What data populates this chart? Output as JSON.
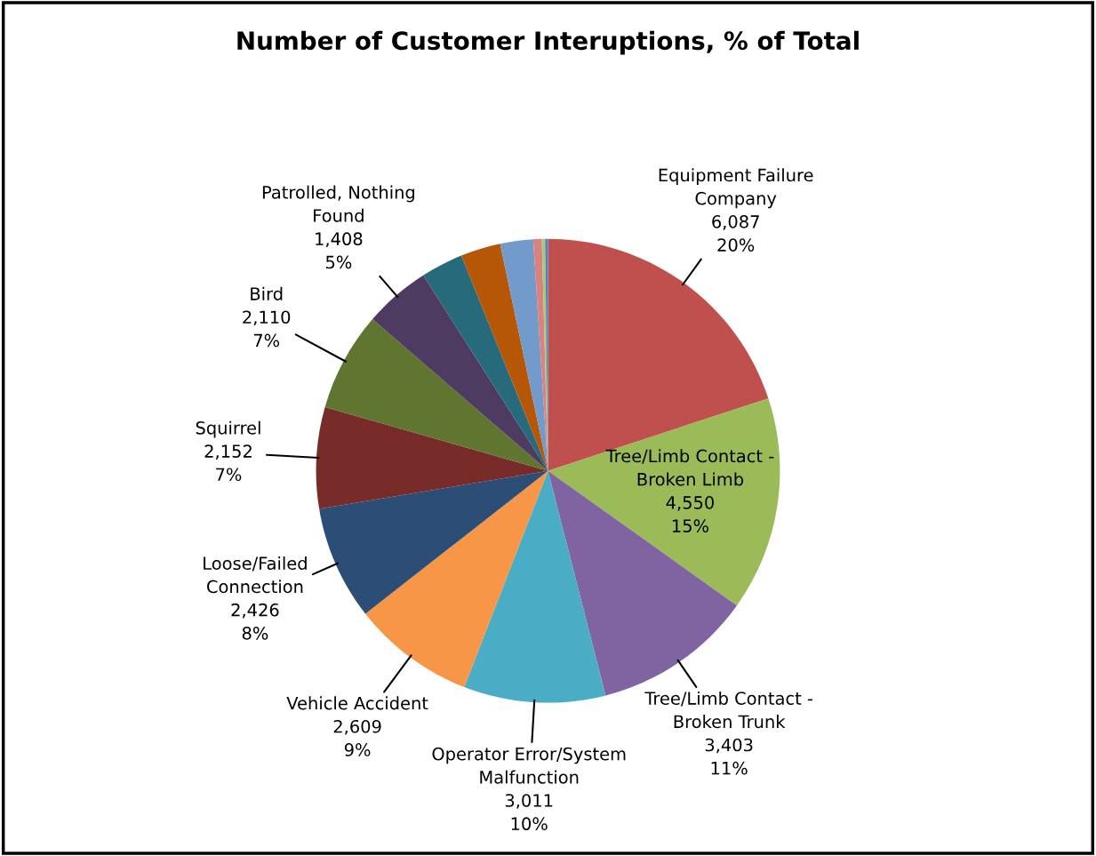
{
  "chart_data": {
    "type": "pie",
    "title": "Number of Customer Interuptions, % of Total",
    "categories": [
      "Equipment Failure\nCompany",
      "Tree/Limb Contact -\nBroken Limb",
      "Tree/Limb Contact -\nBroken Trunk",
      "Operator Error/System\nMalfunction",
      "Vehicle Accident",
      "Loose/Failed\nConnection",
      "Squirrel",
      "Bird",
      "Patrolled, Nothing\nFound",
      null,
      null,
      null,
      null,
      null,
      null
    ],
    "values": [
      6087,
      4550,
      3403,
      3011,
      2609,
      2426,
      2152,
      2110,
      1408,
      900,
      850,
      700,
      180,
      70,
      60
    ],
    "value_labels": [
      "6,087\n20%",
      "4,550\n15%",
      "3,403\n11%",
      "3,011\n10%",
      "2,609\n9%",
      "2,426\n8%",
      "2,152\n7%",
      "2,110\n7%",
      "1,408\n5%",
      null,
      null,
      null,
      null,
      null,
      null
    ],
    "colors": [
      "#c0504d",
      "#9bbb59",
      "#8064a2",
      "#4bacc6",
      "#f79646",
      "#2c4d75",
      "#772c2a",
      "#5f7530",
      "#4d3b62",
      "#276a7c",
      "#b65708",
      "#729aca",
      "#d9827f",
      "#a9c97a",
      "#4f81bd"
    ]
  }
}
